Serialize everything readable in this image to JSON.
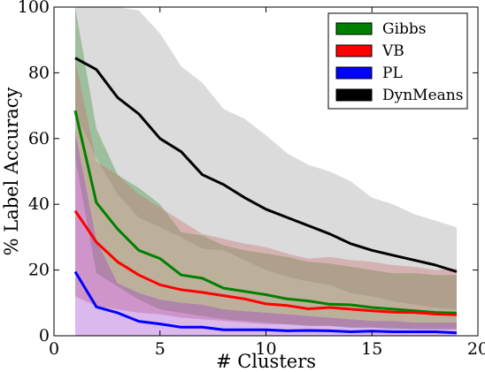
{
  "chart_data": {
    "type": "line",
    "title": "",
    "xlabel": "# Clusters",
    "ylabel": "% Label Accuracy",
    "xlim": [
      0,
      20
    ],
    "ylim": [
      0,
      100
    ],
    "xticks": [
      0,
      5,
      10,
      15,
      20
    ],
    "yticks": [
      0,
      20,
      40,
      60,
      80,
      100
    ],
    "grid": false,
    "legend_position": "top-right",
    "x": [
      1,
      2,
      3,
      4,
      5,
      6,
      7,
      8,
      9,
      10,
      11,
      12,
      13,
      14,
      15,
      16,
      17,
      18,
      19
    ],
    "series": [
      {
        "name": "Gibbs",
        "color": "#008000",
        "band_color": "#2e8b2e",
        "values": [
          68.5,
          40.5,
          32.5,
          26,
          23.5,
          18.5,
          17.5,
          14.5,
          13.5,
          12.5,
          11.2,
          10.6,
          9.6,
          9.4,
          8.6,
          8.1,
          7.6,
          7.1,
          6.9
        ],
        "upper": [
          100,
          63,
          49,
          45,
          40,
          31.5,
          30.5,
          27.5,
          26,
          25,
          24,
          22.5,
          22,
          21,
          20,
          19,
          19,
          18.5,
          18.5
        ],
        "lower": [
          54,
          19,
          15,
          11,
          8,
          7,
          6,
          5,
          4.5,
          4,
          3.5,
          3,
          3,
          2.5,
          2.5,
          2,
          2,
          2,
          2
        ]
      },
      {
        "name": "VB",
        "color": "#ff0000",
        "band_color": "#cc6666",
        "values": [
          38,
          28.5,
          22.5,
          18.5,
          15.5,
          14,
          13.2,
          12.2,
          11.2,
          9.7,
          9.2,
          8.2,
          8.6,
          8.1,
          7.6,
          7.2,
          7.1,
          6.6,
          6.4
        ],
        "upper": [
          84,
          53,
          49,
          43,
          39,
          35,
          31,
          29.5,
          28,
          27,
          25,
          23.5,
          24,
          23,
          22.5,
          21.5,
          21,
          20,
          20.5
        ],
        "lower": [
          12,
          9,
          8,
          7,
          6.5,
          5.5,
          5,
          4.5,
          4,
          3.5,
          3.5,
          3,
          3,
          2.5,
          2.5,
          2.5,
          2,
          2,
          2
        ]
      },
      {
        "name": "PL",
        "color": "#0000ff",
        "band_color": "#9933cc",
        "values": [
          19.5,
          8.8,
          7,
          4.4,
          3.6,
          2.6,
          2.6,
          1.8,
          1.8,
          1.8,
          1.5,
          1.6,
          1.5,
          1.2,
          1.4,
          1.2,
          1.2,
          1.2,
          0.9
        ],
        "upper": [
          62,
          29,
          16,
          13,
          11,
          10,
          9.5,
          8,
          7.5,
          7,
          6.5,
          6,
          5.5,
          5,
          4.5,
          4.5,
          4,
          4,
          4
        ],
        "lower": [
          0,
          0,
          0,
          0,
          0,
          0,
          0,
          0,
          0,
          0,
          0,
          0,
          0,
          0,
          0,
          0,
          0,
          0,
          0
        ]
      },
      {
        "name": "DynMeans",
        "color": "#000000",
        "band_color": "#999999",
        "values": [
          84.5,
          81,
          72.5,
          67.5,
          60,
          56,
          49,
          46,
          42,
          38.5,
          36,
          33.5,
          31,
          28,
          26,
          24.5,
          23,
          21.5,
          19.5
        ],
        "upper": [
          100,
          100,
          100,
          99,
          92,
          82,
          77,
          69,
          66,
          61,
          55.5,
          52,
          50,
          47,
          42,
          40,
          37,
          35,
          33
        ],
        "lower": [
          68,
          54,
          43,
          36,
          33,
          30,
          26.5,
          26,
          23,
          20,
          18,
          16.5,
          15.5,
          13,
          12,
          10.5,
          9.5,
          8.5,
          8
        ]
      }
    ]
  }
}
